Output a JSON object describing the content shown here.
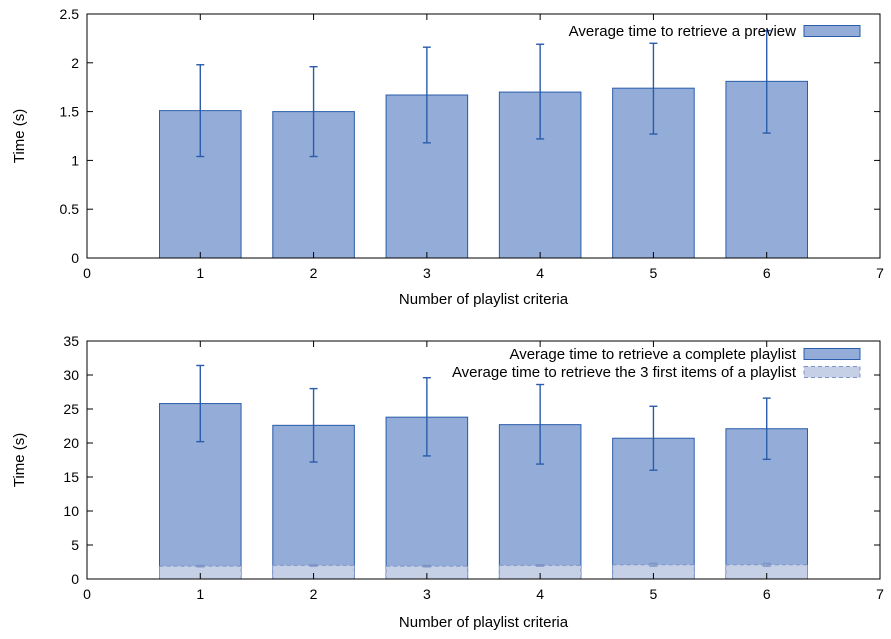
{
  "chart_data": [
    {
      "type": "bar",
      "title": "",
      "xlabel": "Number of playlist criteria",
      "ylabel": "Time (s)",
      "xlim": [
        0,
        7
      ],
      "ylim": [
        0,
        2.5
      ],
      "x_ticks": [
        "0",
        "1",
        "2",
        "3",
        "4",
        "5",
        "6",
        "7"
      ],
      "y_ticks": [
        "0",
        "0.5",
        "1",
        "1.5",
        "2",
        "2.5"
      ],
      "categories": [
        1,
        2,
        3,
        4,
        5,
        6
      ],
      "grid": false,
      "legend_position": "top-right",
      "series": [
        {
          "name": "Average time to retrieve a preview",
          "values": [
            1.51,
            1.5,
            1.67,
            1.7,
            1.74,
            1.81
          ],
          "error_low": [
            1.04,
            1.04,
            1.18,
            1.22,
            1.27,
            1.28
          ],
          "error_high": [
            1.98,
            1.96,
            2.16,
            2.19,
            2.2,
            2.33
          ],
          "fill": "#94acd8",
          "stroke": "#2a5caa",
          "style": "solid"
        }
      ]
    },
    {
      "type": "bar",
      "title": "",
      "xlabel": "Number of playlist criteria",
      "ylabel": "Time (s)",
      "xlim": [
        0,
        7
      ],
      "ylim": [
        0,
        35
      ],
      "x_ticks": [
        "0",
        "1",
        "2",
        "3",
        "4",
        "5",
        "6",
        "7"
      ],
      "y_ticks": [
        "0",
        "5",
        "10",
        "15",
        "20",
        "25",
        "30",
        "35"
      ],
      "categories": [
        1,
        2,
        3,
        4,
        5,
        6
      ],
      "grid": false,
      "legend_position": "top-right",
      "series": [
        {
          "name": "Average time to retrieve a complete playlist",
          "values": [
            25.8,
            22.6,
            23.8,
            22.7,
            20.7,
            22.1
          ],
          "error_low": [
            20.2,
            17.2,
            18.1,
            16.9,
            16.0,
            17.6
          ],
          "error_high": [
            31.4,
            28.0,
            29.6,
            28.6,
            25.4,
            26.6
          ],
          "fill": "#94acd8",
          "stroke": "#2a5caa",
          "style": "solid"
        },
        {
          "name": "Average time to retrieve the 3 first items of a playlist",
          "values": [
            1.9,
            2.0,
            1.9,
            2.0,
            2.1,
            2.1
          ],
          "error_low": [
            1.8,
            1.9,
            1.8,
            1.9,
            1.9,
            1.9
          ],
          "error_high": [
            2.0,
            2.1,
            2.0,
            2.1,
            2.3,
            2.3
          ],
          "fill": "#c5cfe6",
          "stroke": "#7f95c4",
          "style": "dashed"
        }
      ]
    }
  ]
}
